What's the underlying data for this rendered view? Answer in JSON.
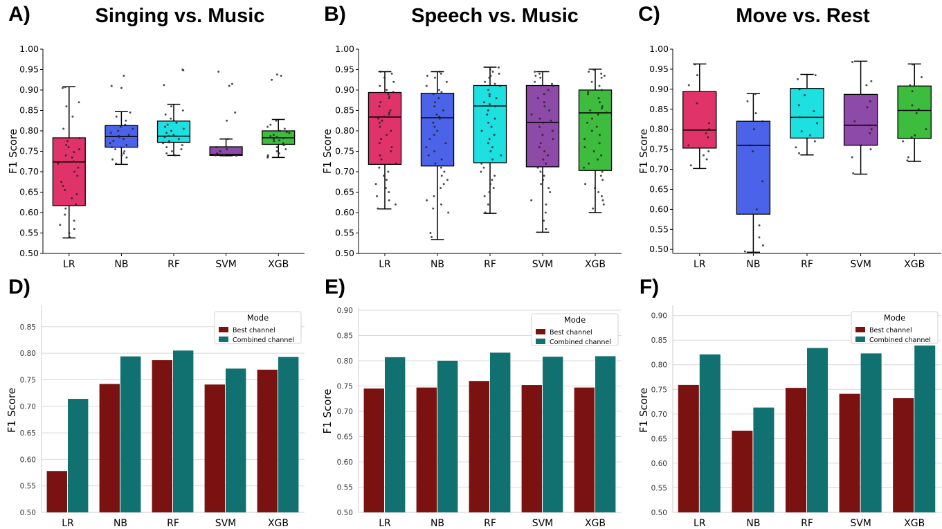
{
  "chart_data": [
    {
      "panel": "A)",
      "title": "Singing vs. Music",
      "type": "box",
      "ylabel": "F1 Score",
      "ylim": [
        0.5,
        1.0
      ],
      "yticks": [
        "0.50",
        "0.55",
        "0.60",
        "0.65",
        "0.70",
        "0.75",
        "0.80",
        "0.85",
        "0.90",
        "0.95",
        "1.00"
      ],
      "categories": [
        "LR",
        "NB",
        "RF",
        "SVM",
        "XGB"
      ],
      "colors": [
        "#e0336a",
        "#4b63e8",
        "#1fe0e0",
        "#8e4aa8",
        "#3dbc3d"
      ],
      "boxes": [
        {
          "min": 0.538,
          "q1": 0.617,
          "median": 0.724,
          "q3": 0.783,
          "max": 0.908,
          "points": [
            0.907,
            0.905,
            0.87,
            0.86,
            0.835,
            0.805,
            0.782,
            0.775,
            0.765,
            0.76,
            0.755,
            0.748,
            0.74,
            0.735,
            0.725,
            0.72,
            0.71,
            0.7,
            0.69,
            0.675,
            0.665,
            0.655,
            0.645,
            0.635,
            0.62,
            0.61,
            0.595,
            0.58,
            0.57,
            0.56,
            0.55,
            0.54
          ]
        },
        {
          "min": 0.718,
          "q1": 0.76,
          "median": 0.786,
          "q3": 0.813,
          "max": 0.847,
          "points": [
            0.935,
            0.91,
            0.905,
            0.845,
            0.835,
            0.825,
            0.815,
            0.81,
            0.805,
            0.8,
            0.795,
            0.79,
            0.788,
            0.785,
            0.78,
            0.775,
            0.77,
            0.765,
            0.76,
            0.755,
            0.75,
            0.745,
            0.74,
            0.735,
            0.73,
            0.72
          ]
        },
        {
          "min": 0.74,
          "q1": 0.772,
          "median": 0.787,
          "q3": 0.824,
          "max": 0.865,
          "points": [
            0.95,
            0.948,
            0.912,
            0.86,
            0.85,
            0.84,
            0.83,
            0.825,
            0.82,
            0.815,
            0.81,
            0.805,
            0.8,
            0.795,
            0.79,
            0.788,
            0.785,
            0.78,
            0.775,
            0.772,
            0.77,
            0.765,
            0.76,
            0.755,
            0.75,
            0.745,
            0.74
          ]
        },
        {
          "min": 0.739,
          "q1": 0.74,
          "median": 0.742,
          "q3": 0.761,
          "max": 0.78,
          "points": [
            0.945,
            0.915,
            0.91,
            0.845,
            0.825,
            0.78,
            0.76,
            0.755,
            0.75,
            0.745,
            0.742,
            0.74,
            0.74,
            0.739
          ]
        },
        {
          "min": 0.735,
          "q1": 0.767,
          "median": 0.783,
          "q3": 0.8,
          "max": 0.828,
          "points": [
            0.938,
            0.935,
            0.925,
            0.825,
            0.815,
            0.81,
            0.805,
            0.8,
            0.797,
            0.795,
            0.79,
            0.787,
            0.785,
            0.782,
            0.78,
            0.777,
            0.775,
            0.77,
            0.765,
            0.76,
            0.755,
            0.75,
            0.745,
            0.74,
            0.737,
            0.735
          ]
        }
      ]
    },
    {
      "panel": "B)",
      "title": "Speech vs. Music",
      "type": "box",
      "ylabel": "F1 Score",
      "ylim": [
        0.5,
        1.0
      ],
      "yticks": [
        "0.50",
        "0.55",
        "0.60",
        "0.65",
        "0.70",
        "0.75",
        "0.80",
        "0.85",
        "0.90",
        "0.95",
        "1.00"
      ],
      "categories": [
        "LR",
        "NB",
        "RF",
        "SVM",
        "XGB"
      ],
      "colors": [
        "#e0336a",
        "#4b63e8",
        "#1fe0e0",
        "#8e4aa8",
        "#3dbc3d"
      ],
      "boxes": [
        {
          "min": 0.609,
          "q1": 0.718,
          "median": 0.834,
          "q3": 0.894,
          "max": 0.945,
          "points": [
            0.945,
            0.94,
            0.93,
            0.92,
            0.91,
            0.9,
            0.895,
            0.89,
            0.885,
            0.88,
            0.87,
            0.86,
            0.85,
            0.845,
            0.84,
            0.835,
            0.83,
            0.825,
            0.82,
            0.81,
            0.8,
            0.79,
            0.78,
            0.77,
            0.76,
            0.75,
            0.74,
            0.73,
            0.72,
            0.71,
            0.7,
            0.69,
            0.68,
            0.67,
            0.66,
            0.65,
            0.64,
            0.63,
            0.62,
            0.61
          ]
        },
        {
          "min": 0.534,
          "q1": 0.714,
          "median": 0.832,
          "q3": 0.892,
          "max": 0.945,
          "points": [
            0.945,
            0.94,
            0.935,
            0.93,
            0.92,
            0.91,
            0.9,
            0.895,
            0.89,
            0.88,
            0.87,
            0.86,
            0.85,
            0.84,
            0.835,
            0.83,
            0.82,
            0.81,
            0.8,
            0.79,
            0.78,
            0.77,
            0.76,
            0.75,
            0.74,
            0.73,
            0.72,
            0.71,
            0.7,
            0.69,
            0.68,
            0.67,
            0.66,
            0.64,
            0.63,
            0.62,
            0.61,
            0.6,
            0.55,
            0.54
          ]
        },
        {
          "min": 0.598,
          "q1": 0.722,
          "median": 0.861,
          "q3": 0.911,
          "max": 0.956,
          "points": [
            0.955,
            0.95,
            0.945,
            0.94,
            0.935,
            0.93,
            0.92,
            0.915,
            0.91,
            0.9,
            0.89,
            0.885,
            0.88,
            0.87,
            0.865,
            0.86,
            0.85,
            0.84,
            0.83,
            0.82,
            0.81,
            0.8,
            0.79,
            0.78,
            0.77,
            0.76,
            0.75,
            0.74,
            0.73,
            0.72,
            0.71,
            0.7,
            0.69,
            0.68,
            0.67,
            0.66,
            0.65,
            0.64,
            0.62,
            0.6
          ]
        },
        {
          "min": 0.552,
          "q1": 0.712,
          "median": 0.821,
          "q3": 0.911,
          "max": 0.945,
          "points": [
            0.945,
            0.94,
            0.935,
            0.93,
            0.92,
            0.915,
            0.91,
            0.9,
            0.89,
            0.88,
            0.87,
            0.86,
            0.85,
            0.84,
            0.83,
            0.825,
            0.82,
            0.81,
            0.8,
            0.79,
            0.78,
            0.77,
            0.76,
            0.75,
            0.74,
            0.73,
            0.72,
            0.71,
            0.7,
            0.69,
            0.68,
            0.67,
            0.66,
            0.65,
            0.63,
            0.62,
            0.6,
            0.58,
            0.56
          ]
        },
        {
          "min": 0.6,
          "q1": 0.703,
          "median": 0.844,
          "q3": 0.9,
          "max": 0.951,
          "points": [
            0.95,
            0.945,
            0.94,
            0.935,
            0.93,
            0.92,
            0.91,
            0.9,
            0.895,
            0.89,
            0.88,
            0.87,
            0.86,
            0.855,
            0.85,
            0.845,
            0.84,
            0.83,
            0.82,
            0.81,
            0.8,
            0.79,
            0.78,
            0.77,
            0.76,
            0.75,
            0.74,
            0.73,
            0.72,
            0.71,
            0.7,
            0.69,
            0.68,
            0.67,
            0.66,
            0.65,
            0.64,
            0.63,
            0.62,
            0.61
          ]
        }
      ]
    },
    {
      "panel": "C)",
      "title": "Move vs. Rest",
      "type": "box",
      "ylabel": "F1 Score",
      "ylim": [
        0.49,
        1.0
      ],
      "yticks": [
        "0.50",
        "0.55",
        "0.60",
        "0.65",
        "0.70",
        "0.75",
        "0.80",
        "0.85",
        "0.90",
        "0.95",
        "1.00"
      ],
      "categories": [
        "LR",
        "NB",
        "RF",
        "SVM",
        "XGB"
      ],
      "colors": [
        "#e0336a",
        "#4b63e8",
        "#1fe0e0",
        "#8e4aa8",
        "#3dbc3d"
      ],
      "boxes": [
        {
          "min": 0.702,
          "q1": 0.753,
          "median": 0.798,
          "q3": 0.894,
          "max": 0.963,
          "points": [
            0.962,
            0.935,
            0.91,
            0.865,
            0.815,
            0.8,
            0.79,
            0.78,
            0.76,
            0.745,
            0.735,
            0.725,
            0.71
          ]
        },
        {
          "min": 0.493,
          "q1": 0.588,
          "median": 0.76,
          "q3": 0.82,
          "max": 0.889,
          "points": [
            0.888,
            0.87,
            0.84,
            0.82,
            0.8,
            0.76,
            0.745,
            0.67,
            0.6,
            0.56,
            0.53,
            0.51,
            0.495
          ]
        },
        {
          "min": 0.736,
          "q1": 0.778,
          "median": 0.83,
          "q3": 0.902,
          "max": 0.937,
          "points": [
            0.935,
            0.925,
            0.9,
            0.885,
            0.86,
            0.845,
            0.83,
            0.815,
            0.795,
            0.785,
            0.77,
            0.755,
            0.74
          ]
        },
        {
          "min": 0.688,
          "q1": 0.76,
          "median": 0.81,
          "q3": 0.887,
          "max": 0.97,
          "points": [
            0.968,
            0.92,
            0.91,
            0.87,
            0.855,
            0.82,
            0.81,
            0.8,
            0.79,
            0.76,
            0.75,
            0.73,
            0.69
          ]
        },
        {
          "min": 0.72,
          "q1": 0.777,
          "median": 0.847,
          "q3": 0.908,
          "max": 0.963,
          "points": [
            0.962,
            0.93,
            0.91,
            0.895,
            0.86,
            0.85,
            0.84,
            0.8,
            0.785,
            0.78,
            0.77,
            0.73,
            0.722
          ]
        }
      ]
    },
    {
      "panel": "D)",
      "type": "bar",
      "ylabel": "F1 Score",
      "ylim": [
        0.5,
        0.885
      ],
      "yticks": [
        "0.50",
        "0.55",
        "0.60",
        "0.65",
        "0.70",
        "0.75",
        "0.80",
        "0.85"
      ],
      "categories": [
        "LR",
        "NB",
        "RF",
        "SVM",
        "XGB"
      ],
      "legend": {
        "title": "Mode",
        "placement": "top-right"
      },
      "series": [
        {
          "name": "Best channel",
          "color": "#7b1212",
          "values": [
            0.578,
            0.742,
            0.787,
            0.741,
            0.769
          ]
        },
        {
          "name": "Combined channel",
          "color": "#117070",
          "values": [
            0.714,
            0.794,
            0.805,
            0.771,
            0.793
          ]
        }
      ]
    },
    {
      "panel": "E)",
      "type": "bar",
      "ylabel": "F1 Score",
      "ylim": [
        0.5,
        0.9
      ],
      "yticks": [
        "0.50",
        "0.55",
        "0.60",
        "0.65",
        "0.70",
        "0.75",
        "0.80",
        "0.85",
        "0.90"
      ],
      "categories": [
        "LR",
        "NB",
        "RF",
        "SVM",
        "XGB"
      ],
      "legend": {
        "title": "Mode",
        "placement": "top-right"
      },
      "series": [
        {
          "name": "Best channel",
          "color": "#7b1212",
          "values": [
            0.745,
            0.747,
            0.76,
            0.752,
            0.747
          ]
        },
        {
          "name": "Combined channel",
          "color": "#117070",
          "values": [
            0.807,
            0.8,
            0.816,
            0.808,
            0.809
          ]
        }
      ]
    },
    {
      "panel": "F)",
      "type": "bar",
      "ylabel": "F1 Score",
      "ylim": [
        0.5,
        0.915
      ],
      "yticks": [
        "0.50",
        "0.55",
        "0.60",
        "0.65",
        "0.70",
        "0.75",
        "0.80",
        "0.85",
        "0.90"
      ],
      "categories": [
        "LR",
        "NB",
        "RF",
        "SVM",
        "XGB"
      ],
      "legend": {
        "title": "Mode",
        "placement": "top-right"
      },
      "series": [
        {
          "name": "Best channel",
          "color": "#7b1212",
          "values": [
            0.759,
            0.666,
            0.753,
            0.741,
            0.732
          ]
        },
        {
          "name": "Combined channel",
          "color": "#117070",
          "values": [
            0.821,
            0.713,
            0.834,
            0.823,
            0.839
          ]
        }
      ]
    }
  ]
}
